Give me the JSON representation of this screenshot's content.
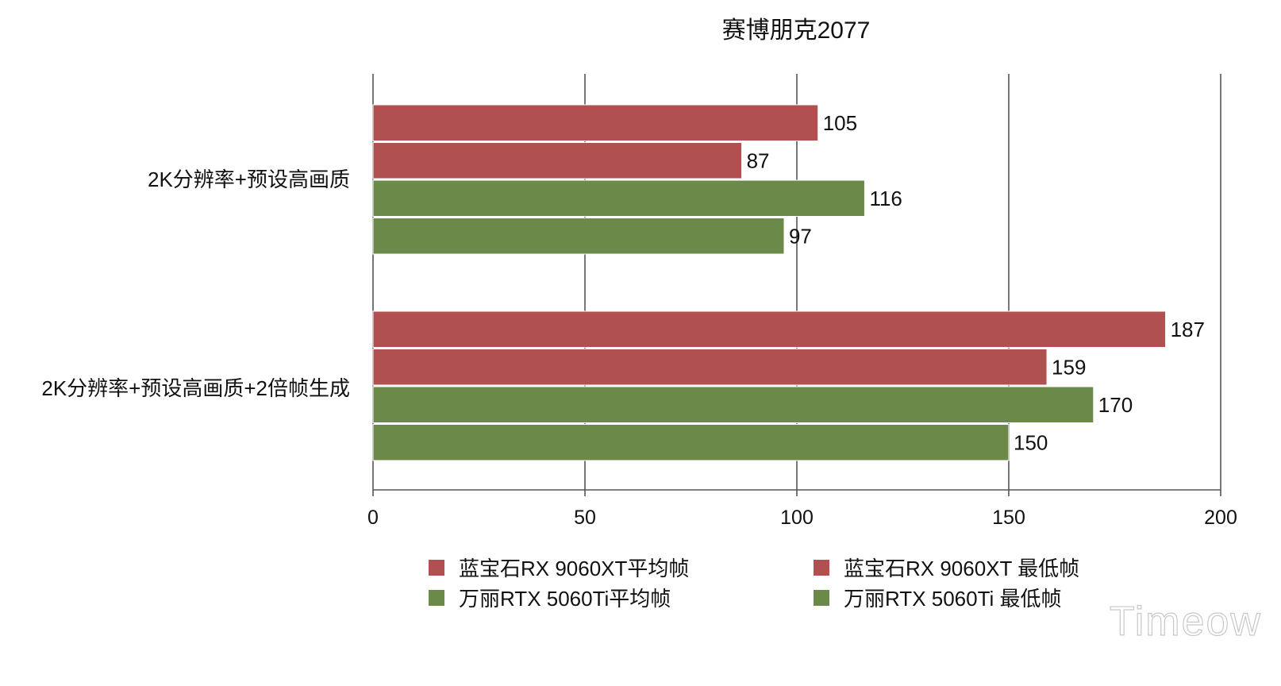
{
  "chart_data": {
    "type": "bar",
    "orientation": "horizontal",
    "title": "赛博朋克2077",
    "categories": [
      "2K分辨率+预设高画质",
      "2K分辨率+预设高画质+2倍帧生成"
    ],
    "series": [
      {
        "name": "蓝宝石RX 9060XT平均帧",
        "values": [
          105,
          187
        ],
        "color": "#b05050"
      },
      {
        "name": "蓝宝石RX 9060XT 最低帧",
        "values": [
          87,
          159
        ],
        "color": "#b05050"
      },
      {
        "name": "万丽RTX 5060Ti平均帧",
        "values": [
          116,
          170
        ],
        "color": "#6b8a4a"
      },
      {
        "name": "万丽RTX 5060Ti 最低帧",
        "values": [
          97,
          150
        ],
        "color": "#6b8a4a"
      }
    ],
    "xlim": [
      0,
      200
    ],
    "xticks": [
      0,
      50,
      100,
      150,
      200
    ],
    "grid": true,
    "legend_position": "bottom"
  },
  "watermark": "Timeow"
}
